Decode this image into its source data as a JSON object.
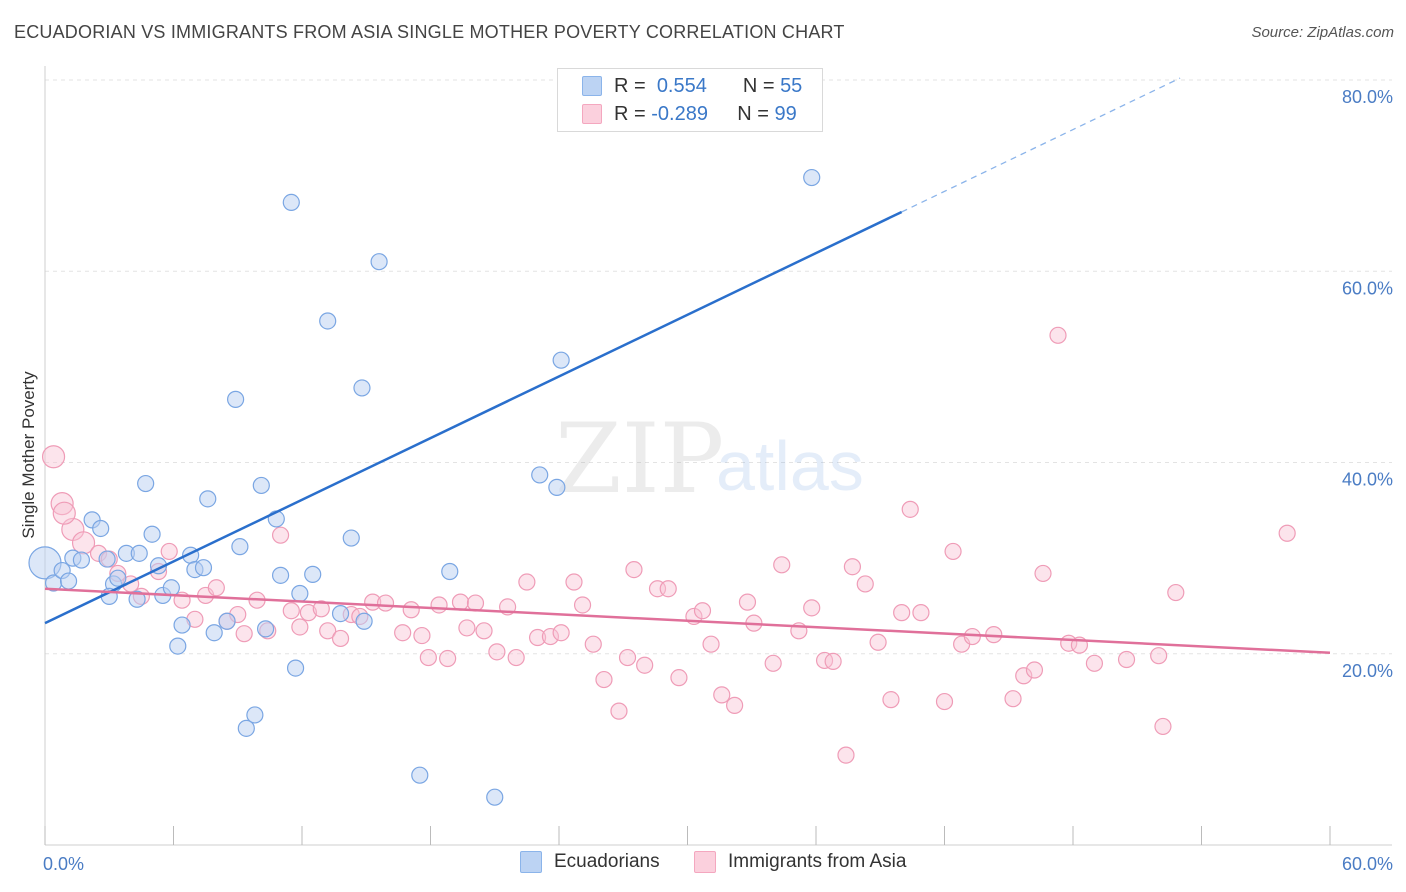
{
  "title": "ECUADORIAN VS IMMIGRANTS FROM ASIA SINGLE MOTHER POVERTY CORRELATION CHART",
  "source": "Source: ZipAtlas.com",
  "watermark": {
    "zip": "ZIP",
    "atlas": "atlas"
  },
  "legend": {
    "r_label": "R =",
    "n_label": "N =",
    "rows": [
      {
        "r": "0.554",
        "n": "55",
        "color": "#8bb4ea"
      },
      {
        "r": "-0.289",
        "n": "99",
        "color": "#f4a7bf"
      }
    ]
  },
  "chart_data": {
    "type": "scatter",
    "ylabel": "Single Mother Poverty",
    "x_ticks": [
      "0.0%",
      "60.0%"
    ],
    "y_ticks": [
      "20.0%",
      "40.0%",
      "60.0%",
      "80.0%"
    ],
    "xlim": [
      0,
      60
    ],
    "ylim": [
      0,
      82
    ],
    "grid": true,
    "legend_position": "top-center",
    "series": [
      {
        "name": "Ecuadorians",
        "color": "#8bb4ea",
        "line_color": "#2a6fcc",
        "trend": {
          "x0": 0,
          "y0": 23.2,
          "x1": 40,
          "y1": 66.2,
          "dashed_to_x": 53,
          "dashed_to_y": 80.2
        },
        "points": [
          [
            0.0,
            29.5
          ],
          [
            0.4,
            27.4
          ],
          [
            0.8,
            28.7
          ],
          [
            1.1,
            27.6
          ],
          [
            1.3,
            30.0
          ],
          [
            1.7,
            29.8
          ],
          [
            2.2,
            34.0
          ],
          [
            2.6,
            33.1
          ],
          [
            2.9,
            29.9
          ],
          [
            3.2,
            27.3
          ],
          [
            3.4,
            27.9
          ],
          [
            3.8,
            30.5
          ],
          [
            4.4,
            30.5
          ],
          [
            4.3,
            25.7
          ],
          [
            4.7,
            37.8
          ],
          [
            5.0,
            32.5
          ],
          [
            5.3,
            29.2
          ],
          [
            5.5,
            26.1
          ],
          [
            5.9,
            26.9
          ],
          [
            6.2,
            20.8
          ],
          [
            6.4,
            23.0
          ],
          [
            6.8,
            30.3
          ],
          [
            7.0,
            28.8
          ],
          [
            7.4,
            29.0
          ],
          [
            7.6,
            36.2
          ],
          [
            7.9,
            22.2
          ],
          [
            8.5,
            23.4
          ],
          [
            8.9,
            46.6
          ],
          [
            9.1,
            31.2
          ],
          [
            9.4,
            12.2
          ],
          [
            9.8,
            13.6
          ],
          [
            10.1,
            37.6
          ],
          [
            10.3,
            22.6
          ],
          [
            10.8,
            34.1
          ],
          [
            11.0,
            28.2
          ],
          [
            11.5,
            67.2
          ],
          [
            11.7,
            18.5
          ],
          [
            11.9,
            26.3
          ],
          [
            12.5,
            28.3
          ],
          [
            13.2,
            54.8
          ],
          [
            13.8,
            24.2
          ],
          [
            14.3,
            32.1
          ],
          [
            14.8,
            47.8
          ],
          [
            14.9,
            23.4
          ],
          [
            15.6,
            61.0
          ],
          [
            17.5,
            7.3
          ],
          [
            18.9,
            28.6
          ],
          [
            23.1,
            38.7
          ],
          [
            23.9,
            37.4
          ],
          [
            24.1,
            50.7
          ],
          [
            24.8,
            78.7
          ],
          [
            25.5,
            79.8
          ],
          [
            35.8,
            69.8
          ],
          [
            21.0,
            5.0
          ],
          [
            3.0,
            26.0
          ]
        ]
      },
      {
        "name": "Immigrants from Asia",
        "color": "#f4a7bf",
        "line_color": "#e0709a",
        "trend": {
          "x0": 0,
          "y0": 26.8,
          "x1": 60,
          "y1": 20.1
        },
        "points": [
          [
            0.4,
            40.6
          ],
          [
            0.8,
            35.7
          ],
          [
            1.3,
            33.0
          ],
          [
            1.8,
            31.6
          ],
          [
            2.5,
            30.5
          ],
          [
            3.0,
            29.9
          ],
          [
            3.4,
            28.4
          ],
          [
            4.0,
            27.3
          ],
          [
            4.5,
            26.0
          ],
          [
            5.3,
            28.6
          ],
          [
            5.8,
            30.7
          ],
          [
            6.4,
            25.6
          ],
          [
            7.0,
            23.6
          ],
          [
            7.5,
            26.1
          ],
          [
            8.0,
            26.9
          ],
          [
            8.5,
            23.4
          ],
          [
            9.0,
            24.1
          ],
          [
            9.3,
            22.1
          ],
          [
            9.9,
            25.6
          ],
          [
            10.4,
            22.4
          ],
          [
            11.0,
            32.4
          ],
          [
            11.5,
            24.5
          ],
          [
            11.9,
            22.8
          ],
          [
            12.3,
            24.3
          ],
          [
            12.9,
            24.7
          ],
          [
            13.2,
            22.4
          ],
          [
            13.8,
            21.6
          ],
          [
            14.3,
            24.1
          ],
          [
            14.7,
            23.9
          ],
          [
            15.3,
            25.4
          ],
          [
            15.9,
            25.3
          ],
          [
            16.7,
            22.2
          ],
          [
            17.1,
            24.6
          ],
          [
            17.6,
            21.9
          ],
          [
            17.9,
            19.6
          ],
          [
            18.4,
            25.1
          ],
          [
            18.8,
            19.5
          ],
          [
            19.4,
            25.4
          ],
          [
            19.7,
            22.7
          ],
          [
            20.1,
            25.3
          ],
          [
            20.5,
            22.4
          ],
          [
            21.1,
            20.2
          ],
          [
            21.6,
            24.9
          ],
          [
            22.0,
            19.6
          ],
          [
            22.5,
            27.5
          ],
          [
            23.0,
            21.7
          ],
          [
            23.6,
            21.8
          ],
          [
            24.1,
            22.2
          ],
          [
            24.7,
            27.5
          ],
          [
            25.1,
            25.1
          ],
          [
            25.6,
            21.0
          ],
          [
            26.1,
            17.3
          ],
          [
            26.8,
            14.0
          ],
          [
            27.2,
            19.6
          ],
          [
            27.5,
            28.8
          ],
          [
            28.0,
            18.8
          ],
          [
            28.6,
            26.8
          ],
          [
            29.1,
            26.8
          ],
          [
            29.6,
            17.5
          ],
          [
            30.3,
            23.9
          ],
          [
            30.7,
            24.5
          ],
          [
            31.1,
            21.0
          ],
          [
            31.6,
            15.7
          ],
          [
            32.2,
            14.6
          ],
          [
            32.8,
            25.4
          ],
          [
            33.1,
            23.2
          ],
          [
            34.0,
            19.0
          ],
          [
            34.4,
            29.3
          ],
          [
            35.2,
            22.4
          ],
          [
            35.8,
            24.8
          ],
          [
            36.4,
            19.3
          ],
          [
            36.8,
            19.2
          ],
          [
            37.4,
            9.4
          ],
          [
            37.7,
            29.1
          ],
          [
            38.3,
            27.3
          ],
          [
            38.9,
            21.2
          ],
          [
            39.5,
            15.2
          ],
          [
            40.0,
            24.3
          ],
          [
            40.4,
            35.1
          ],
          [
            40.9,
            24.3
          ],
          [
            42.0,
            15.0
          ],
          [
            42.4,
            30.7
          ],
          [
            42.8,
            21.0
          ],
          [
            43.3,
            21.8
          ],
          [
            44.3,
            22.0
          ],
          [
            45.2,
            15.3
          ],
          [
            45.7,
            17.7
          ],
          [
            46.2,
            18.3
          ],
          [
            46.6,
            28.4
          ],
          [
            47.3,
            53.3
          ],
          [
            47.8,
            21.1
          ],
          [
            48.3,
            20.9
          ],
          [
            49.0,
            19.0
          ],
          [
            50.5,
            19.4
          ],
          [
            52.0,
            19.8
          ],
          [
            52.2,
            12.4
          ],
          [
            52.8,
            26.4
          ],
          [
            58.0,
            32.6
          ],
          [
            0.9,
            34.7
          ]
        ]
      }
    ]
  }
}
